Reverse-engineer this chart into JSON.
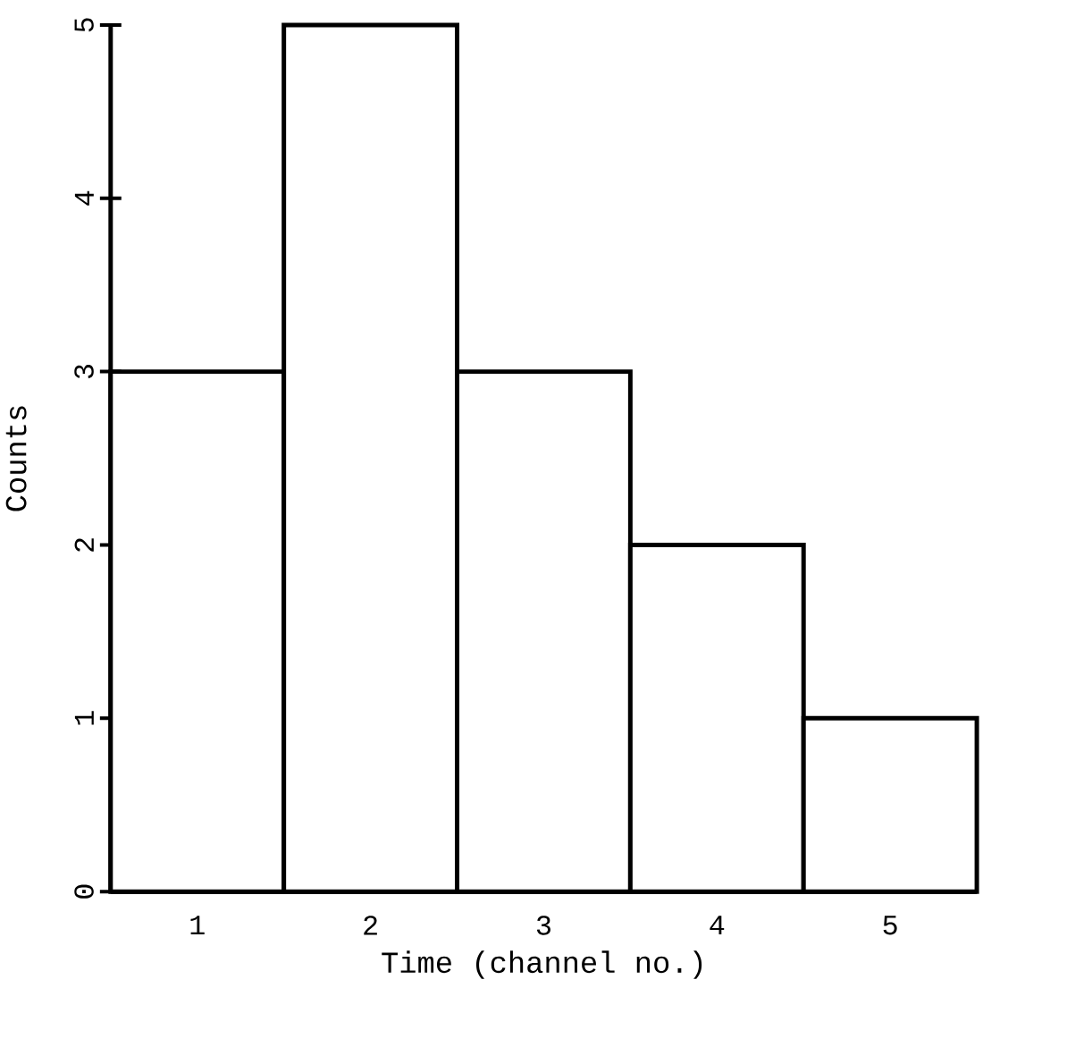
{
  "chart_data": {
    "type": "bar",
    "xlabel": "Time (channel no.)",
    "ylabel": "Counts",
    "categories": [
      "1",
      "2",
      "3",
      "4",
      "5"
    ],
    "values": [
      3,
      5,
      3,
      2,
      1
    ],
    "color": "#ffffff",
    "ylim": [
      0,
      5
    ],
    "yticks": [
      0,
      1,
      2,
      3,
      4,
      5
    ]
  }
}
